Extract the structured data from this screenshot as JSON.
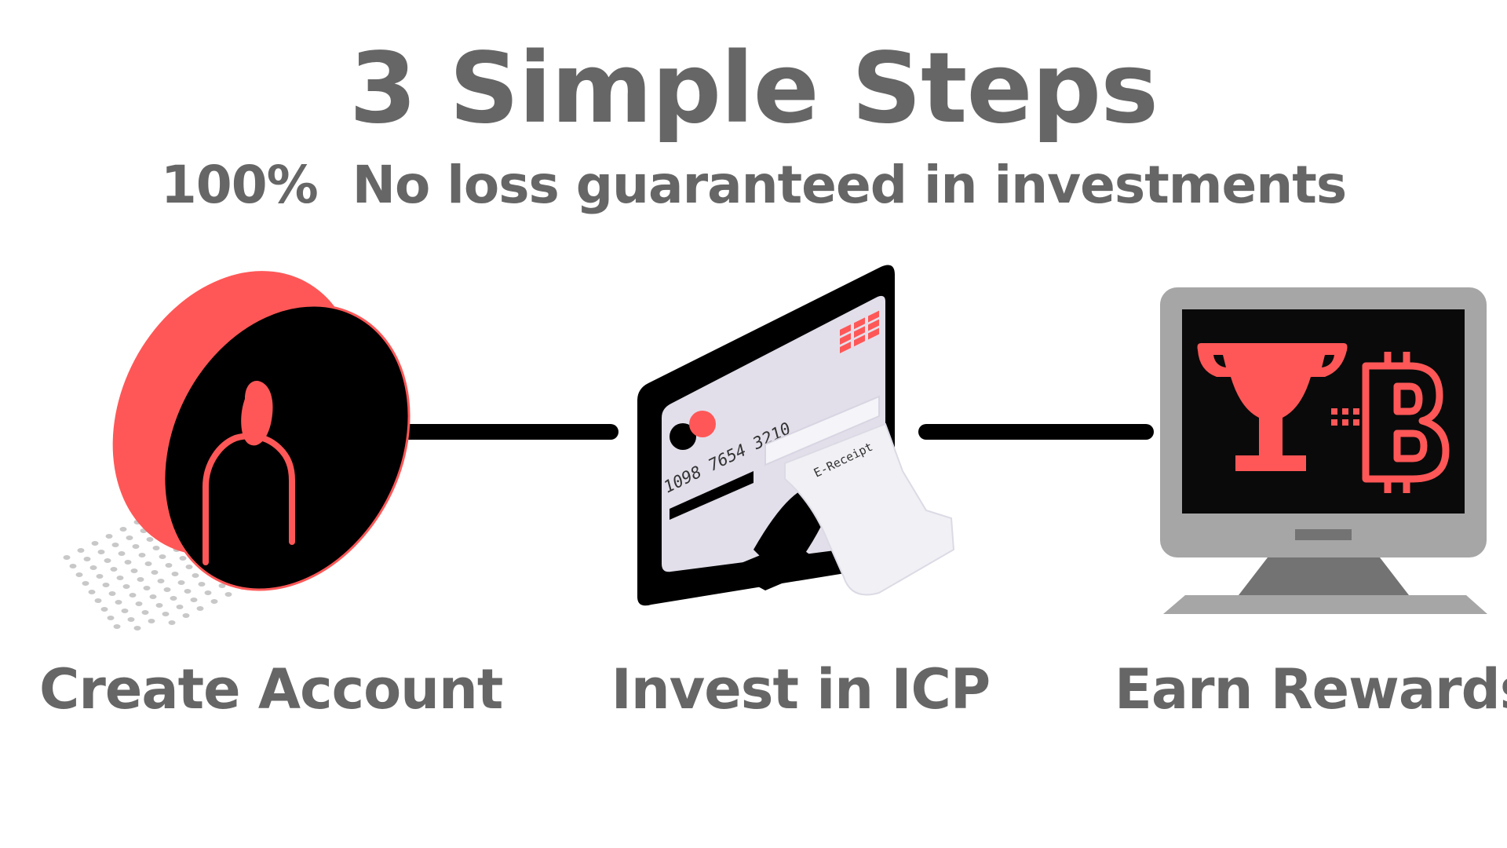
{
  "header": {
    "title": "3 Simple Steps",
    "subtitle": "100%  No loss guaranteed in investments"
  },
  "steps": [
    {
      "label": "Create Account",
      "icon": "user-account-icon"
    },
    {
      "label": "Invest in ICP",
      "icon": "credit-card-payment-icon"
    },
    {
      "label": "Earn Rewards",
      "icon": "trophy-bitcoin-monitor-icon"
    }
  ],
  "card": {
    "number_line_1": "1098 7654 3210",
    "receipt_label": "E-Receipt"
  },
  "colors": {
    "accent": "#FF5757",
    "text": "#666666",
    "dark": "#000000",
    "monitor_frame": "#A6A6A6",
    "card_face": "#E2DFEA"
  }
}
